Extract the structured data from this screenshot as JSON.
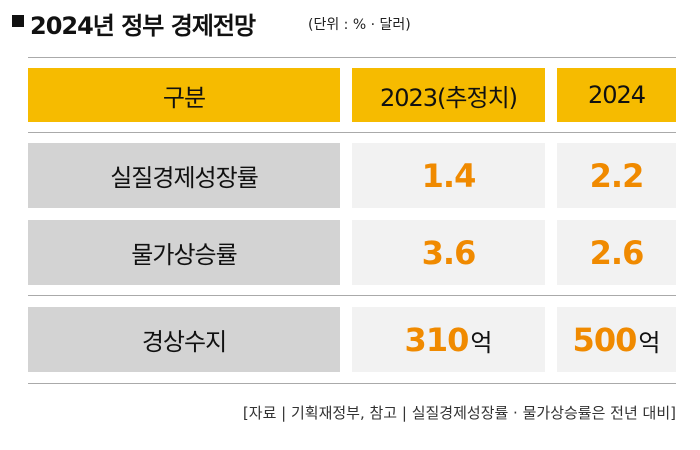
{
  "header": {
    "title": "2024년 정부 경제전망",
    "unit": "(단위 : % · 달러)"
  },
  "table": {
    "columns": [
      "구분",
      "2023(추정치)",
      "2024"
    ],
    "rows": [
      [
        "실질경제성장률",
        {
          "number": "1.4"
        },
        {
          "number": "2.2"
        }
      ],
      [
        "물가상승률",
        {
          "number": "3.6"
        },
        {
          "number": "2.6"
        }
      ],
      [
        "경상수지",
        {
          "number": "310",
          "suffix": "억"
        },
        {
          "number": "500",
          "suffix": "억"
        }
      ]
    ]
  },
  "source": "[자료 | 기획재정부, 참고 | 실질경제성장률 · 물가상승률은 전년 대비]"
}
